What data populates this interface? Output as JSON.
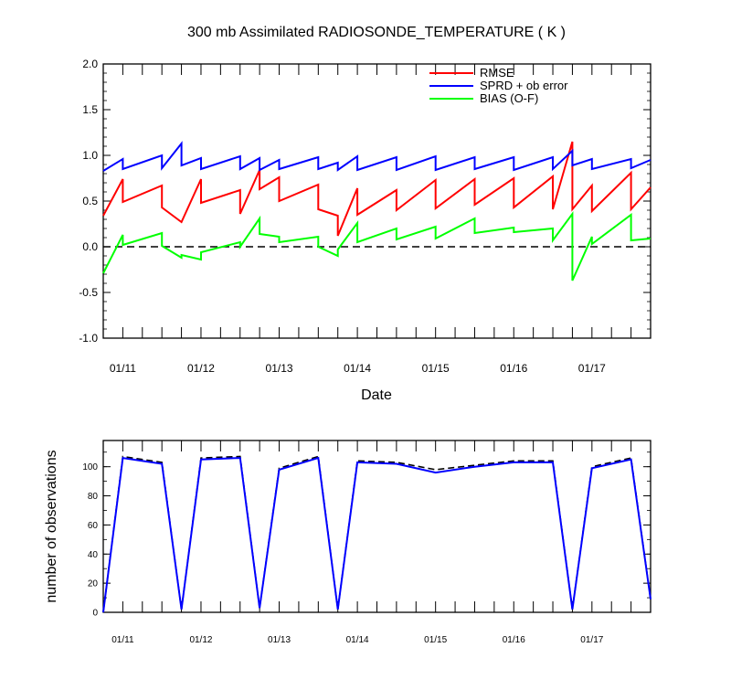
{
  "chart_data": [
    {
      "type": "line",
      "title": "300 mb Assimilated RADIOSONDE_TEMPERATURE ( K )",
      "xlabel": "Date",
      "ylabel": "",
      "xlim": [
        0,
        7
      ],
      "ylim": [
        -1.0,
        2.0
      ],
      "yticks": [
        "2.0",
        "1.5",
        "1.0",
        "0.5",
        "0.0",
        "-0.5",
        "-1.0"
      ],
      "ytick_values": [
        2.0,
        1.5,
        1.0,
        0.5,
        0.0,
        -0.5,
        -1.0
      ],
      "xticks": [
        "01/11",
        "01/12",
        "01/13",
        "01/14",
        "01/15",
        "01/16",
        "01/17"
      ],
      "xtick_values": [
        0.25,
        1.25,
        2.25,
        3.25,
        4.25,
        5.25,
        6.25
      ],
      "legend_position": "top-right",
      "reference_line": {
        "y": 0.0,
        "style": "dashed",
        "color": "#000000"
      },
      "series": [
        {
          "name": "RMSE",
          "color": "#ff0000",
          "x": [
            0.0,
            0.25,
            0.25,
            0.75,
            0.75,
            1.0,
            1.25,
            1.25,
            1.75,
            1.75,
            2.0,
            2.0,
            2.25,
            2.25,
            2.75,
            2.75,
            3.0,
            3.0,
            3.25,
            3.25,
            3.75,
            3.75,
            4.25,
            4.25,
            4.75,
            4.75,
            5.25,
            5.25,
            5.75,
            5.75,
            6.0,
            6.0,
            6.25,
            6.25,
            6.75,
            6.75,
            7.0
          ],
          "y": [
            0.34,
            0.74,
            0.49,
            0.67,
            0.43,
            0.27,
            0.74,
            0.48,
            0.62,
            0.36,
            0.84,
            0.63,
            0.76,
            0.5,
            0.68,
            0.41,
            0.34,
            0.12,
            0.64,
            0.35,
            0.62,
            0.4,
            0.73,
            0.42,
            0.74,
            0.46,
            0.75,
            0.43,
            0.77,
            0.41,
            1.15,
            0.41,
            0.67,
            0.39,
            0.81,
            0.41,
            0.65
          ]
        },
        {
          "name": "SPRD + ob error",
          "color": "#0000ff",
          "x": [
            0.0,
            0.25,
            0.25,
            0.75,
            0.75,
            1.0,
            1.0,
            1.25,
            1.25,
            1.75,
            1.75,
            2.0,
            2.0,
            2.25,
            2.25,
            2.75,
            2.75,
            3.0,
            3.0,
            3.25,
            3.25,
            3.75,
            3.75,
            4.25,
            4.25,
            4.75,
            4.75,
            5.25,
            5.25,
            5.75,
            5.75,
            6.0,
            6.0,
            6.25,
            6.25,
            6.75,
            6.75,
            7.0
          ],
          "y": [
            0.83,
            0.96,
            0.85,
            1.0,
            0.86,
            1.13,
            0.89,
            0.97,
            0.85,
            0.99,
            0.85,
            0.97,
            0.84,
            0.95,
            0.85,
            0.98,
            0.85,
            0.92,
            0.84,
            0.99,
            0.84,
            0.98,
            0.84,
            0.99,
            0.84,
            0.98,
            0.85,
            0.98,
            0.84,
            0.98,
            0.85,
            1.05,
            0.89,
            0.96,
            0.85,
            0.96,
            0.86,
            0.95
          ]
        },
        {
          "name": "BIAS (O-F)",
          "color": "#00ff00",
          "x": [
            0.0,
            0.25,
            0.25,
            0.75,
            0.75,
            1.0,
            1.0,
            1.25,
            1.25,
            1.75,
            1.75,
            2.0,
            2.0,
            2.25,
            2.25,
            2.75,
            2.75,
            3.0,
            3.0,
            3.25,
            3.25,
            3.75,
            3.75,
            4.25,
            4.25,
            4.75,
            4.75,
            5.25,
            5.25,
            5.75,
            5.75,
            6.0,
            6.0,
            6.25,
            6.25,
            6.75,
            6.75,
            7.0
          ],
          "y": [
            -0.29,
            0.13,
            0.02,
            0.15,
            0.01,
            -0.12,
            -0.09,
            -0.14,
            -0.06,
            0.05,
            0.0,
            0.31,
            0.14,
            0.11,
            0.05,
            0.11,
            0.0,
            -0.1,
            -0.03,
            0.26,
            0.05,
            0.2,
            0.08,
            0.22,
            0.09,
            0.31,
            0.15,
            0.21,
            0.16,
            0.2,
            0.07,
            0.36,
            -0.37,
            0.11,
            0.03,
            0.35,
            0.07,
            0.09
          ]
        }
      ]
    },
    {
      "type": "line",
      "title": "",
      "xlabel": "",
      "ylabel": "number of observations",
      "xlim": [
        0,
        7
      ],
      "ylim": [
        0,
        118
      ],
      "yticks": [
        "100",
        "80",
        "60",
        "40",
        "20",
        "0"
      ],
      "ytick_values": [
        100,
        80,
        60,
        40,
        20,
        0
      ],
      "xticks": [
        "01/11",
        "01/12",
        "01/13",
        "01/14",
        "01/15",
        "01/16",
        "01/17"
      ],
      "xtick_values": [
        0.25,
        1.25,
        2.25,
        3.25,
        4.25,
        5.25,
        6.25
      ],
      "series": [
        {
          "style": "dashed",
          "color": "#000000",
          "x": [
            0.0,
            0.25,
            0.75,
            1.0,
            1.25,
            1.75,
            2.0,
            2.25,
            2.75,
            3.0,
            3.25,
            3.75,
            4.25,
            4.75,
            5.25,
            5.75,
            6.0,
            6.25,
            6.75,
            7.0
          ],
          "y": [
            0,
            107,
            103,
            2,
            106,
            107,
            3,
            99,
            107,
            2,
            104,
            103,
            98,
            101,
            104,
            104,
            2,
            100,
            106,
            9
          ]
        },
        {
          "style": "solid",
          "color": "#0000ff",
          "x": [
            0.0,
            0.25,
            0.75,
            1.0,
            1.25,
            1.75,
            2.0,
            2.25,
            2.75,
            3.0,
            3.25,
            3.75,
            4.25,
            4.75,
            5.25,
            5.75,
            6.0,
            6.25,
            6.75,
            7.0
          ],
          "y": [
            0,
            106,
            102,
            2,
            105,
            106,
            3,
            98,
            106,
            2,
            103,
            102,
            96,
            100,
            103,
            103,
            2,
            99,
            105,
            9
          ]
        }
      ]
    }
  ]
}
